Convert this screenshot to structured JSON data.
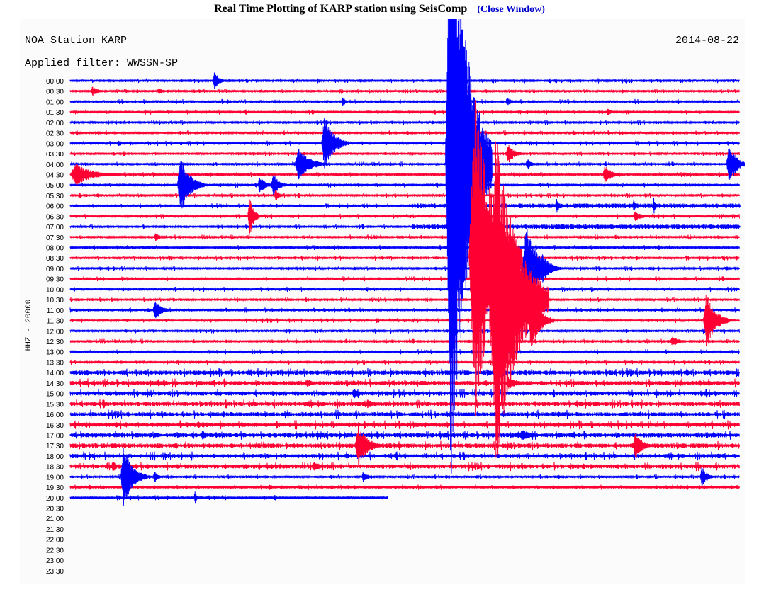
{
  "header": {
    "title": "Real Time Plotting of KARP station using SeisComp",
    "close_label": "Close Window"
  },
  "chart_data": {
    "type": "line",
    "title": "NOA Station KARP",
    "date": "2014-08-22",
    "filter": "Applied filter: WWSSN-SP",
    "ylabel": "HHZ - 20000",
    "row_labels": [
      "00:00",
      "00:30",
      "01:00",
      "01:30",
      "02:00",
      "02:30",
      "03:00",
      "03:30",
      "04:00",
      "04:30",
      "05:00",
      "05:30",
      "06:00",
      "06:30",
      "07:00",
      "07:30",
      "08:00",
      "08:30",
      "09:00",
      "09:30",
      "10:00",
      "10:30",
      "11:00",
      "11:30",
      "12:00",
      "12:30",
      "13:00",
      "13:30",
      "14:00",
      "14:30",
      "15:00",
      "15:30",
      "16:00",
      "16:30",
      "17:00",
      "17:30",
      "18:00",
      "18:30",
      "19:00",
      "19:30",
      "20:00",
      "20:30",
      "21:00",
      "21:30",
      "22:00",
      "22:30",
      "23:00",
      "23:30"
    ],
    "series_colors": [
      "#0000ff",
      "#ff0033"
    ],
    "rows_with_data": 41,
    "last_row_fraction": 0.475,
    "noise_rows": [
      12,
      14
    ],
    "noise_fraction_start": 0.51,
    "events": [
      {
        "row": 0,
        "t": 0.213,
        "amp": 14,
        "dur": 0.02
      },
      {
        "row": 1,
        "t": 0.03,
        "amp": 8,
        "dur": 0.025
      },
      {
        "row": 1,
        "t": 0.13,
        "amp": 5,
        "dur": 0.02
      },
      {
        "row": 2,
        "t": 0.405,
        "amp": 7,
        "dur": 0.015
      },
      {
        "row": 2,
        "t": 0.65,
        "amp": 6,
        "dur": 0.02
      },
      {
        "row": 3,
        "t": 0.8,
        "amp": 5,
        "dur": 0.02
      },
      {
        "row": 6,
        "t": 0.375,
        "amp": 40,
        "dur": 0.04
      },
      {
        "row": 7,
        "t": 0.65,
        "amp": 14,
        "dur": 0.03
      },
      {
        "row": 8,
        "t": 0.335,
        "amp": 22,
        "dur": 0.05
      },
      {
        "row": 8,
        "t": 0.68,
        "amp": 8,
        "dur": 0.02
      },
      {
        "row": 8,
        "t": 0.98,
        "amp": 32,
        "dur": 0.03
      },
      {
        "row": 9,
        "t": 0.0,
        "amp": 16,
        "dur": 0.07
      },
      {
        "row": 9,
        "t": 0.795,
        "amp": 14,
        "dur": 0.03
      },
      {
        "row": 10,
        "t": 0.16,
        "amp": 42,
        "dur": 0.04
      },
      {
        "row": 10,
        "t": 0.28,
        "amp": 14,
        "dur": 0.025
      },
      {
        "row": 10,
        "t": 0.3,
        "amp": 18,
        "dur": 0.025
      },
      {
        "row": 11,
        "t": 0.305,
        "amp": 10,
        "dur": 0.015
      },
      {
        "row": 12,
        "t": 0.725,
        "amp": 12,
        "dur": 0.01
      },
      {
        "row": 12,
        "t": 0.84,
        "amp": 12,
        "dur": 0.01
      },
      {
        "row": 12,
        "t": 0.87,
        "amp": 12,
        "dur": 0.01
      },
      {
        "row": 13,
        "t": 0.265,
        "amp": 30,
        "dur": 0.02
      },
      {
        "row": 13,
        "t": 0.84,
        "amp": 8,
        "dur": 0.03
      },
      {
        "row": 14,
        "t": 0.51,
        "amp": 6,
        "dur": 0.01
      },
      {
        "row": 15,
        "t": 0.125,
        "amp": 6,
        "dur": 0.02
      },
      {
        "row": 18,
        "t": 0.7,
        "amp": 22,
        "dur": 0.035
      },
      {
        "row": 18,
        "t": 0.978,
        "amp": 5,
        "dur": 0.01
      },
      {
        "row": 22,
        "t": 0.123,
        "amp": 14,
        "dur": 0.03
      },
      {
        "row": 22,
        "t": 0.68,
        "amp": 8,
        "dur": 0.015
      },
      {
        "row": 23,
        "t": 0.683,
        "amp": 40,
        "dur": 0.04
      },
      {
        "row": 23,
        "t": 0.945,
        "amp": 40,
        "dur": 0.04
      },
      {
        "row": 25,
        "t": 0.895,
        "amp": 7,
        "dur": 0.035
      },
      {
        "row": 29,
        "t": 0.35,
        "amp": 6,
        "dur": 0.03
      },
      {
        "row": 29,
        "t": 0.65,
        "amp": 9,
        "dur": 0.04
      },
      {
        "row": 30,
        "t": 0.42,
        "amp": 8,
        "dur": 0.03
      },
      {
        "row": 31,
        "t": 0.44,
        "amp": 7,
        "dur": 0.03
      },
      {
        "row": 34,
        "t": 0.195,
        "amp": 7,
        "dur": 0.02
      },
      {
        "row": 34,
        "t": 0.67,
        "amp": 9,
        "dur": 0.04
      },
      {
        "row": 35,
        "t": 0.425,
        "amp": 30,
        "dur": 0.04
      },
      {
        "row": 35,
        "t": 0.84,
        "amp": 22,
        "dur": 0.03
      },
      {
        "row": 37,
        "t": 0.062,
        "amp": 12,
        "dur": 0.01
      },
      {
        "row": 37,
        "t": 0.36,
        "amp": 8,
        "dur": 0.03
      },
      {
        "row": 38,
        "t": 0.075,
        "amp": 44,
        "dur": 0.04
      },
      {
        "row": 38,
        "t": 0.124,
        "amp": 10,
        "dur": 0.015
      },
      {
        "row": 38,
        "t": 0.435,
        "amp": 8,
        "dur": 0.02
      },
      {
        "row": 38,
        "t": 0.94,
        "amp": 14,
        "dur": 0.025
      },
      {
        "row": 40,
        "t": 0.185,
        "amp": 12,
        "dur": 0.008
      }
    ],
    "big_events": [
      {
        "row": 8,
        "t": 0.56,
        "amp": 470,
        "dur": 0.07
      },
      {
        "row": 17,
        "t": 0.595,
        "amp": 230,
        "dur": 0.08
      },
      {
        "row": 18,
        "t": 0.675,
        "amp": 65,
        "dur": 0.05
      },
      {
        "row": 21,
        "t": 0.625,
        "amp": 240,
        "dur": 0.09
      }
    ]
  }
}
